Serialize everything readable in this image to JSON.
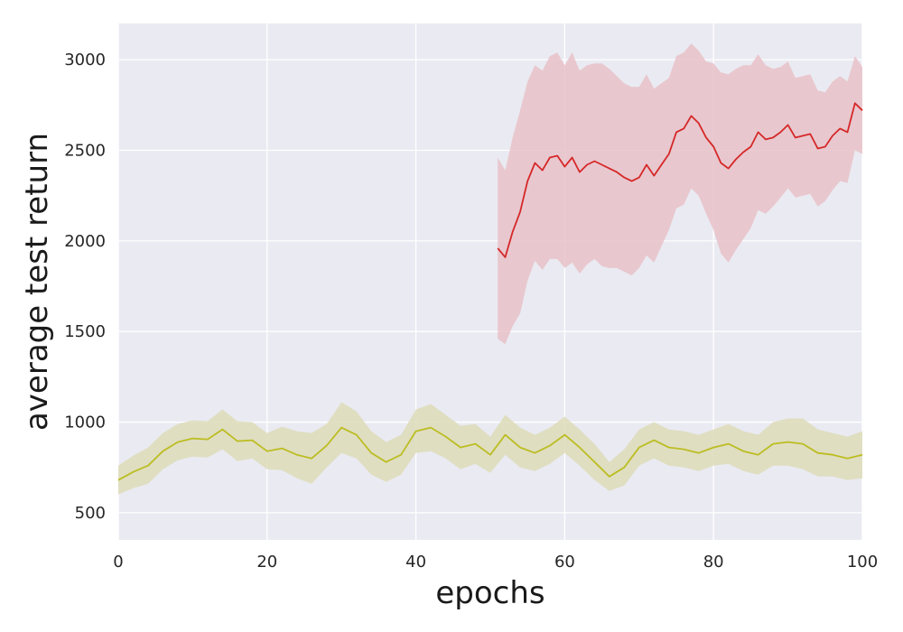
{
  "chart_data": {
    "type": "line",
    "title": "",
    "xlabel": "epochs",
    "ylabel": "average test return",
    "xlim": [
      0,
      100
    ],
    "ylim": [
      350,
      3200
    ],
    "x_ticks": [
      0,
      20,
      40,
      60,
      80,
      100
    ],
    "y_ticks": [
      500,
      1000,
      1500,
      2000,
      2500,
      3000
    ],
    "grid": true,
    "legend": "none",
    "background": "#eaeaf2",
    "series": [
      {
        "color": "#bcbd22",
        "fill_color": "#dddcb8",
        "points": [
          [
            0,
            680
          ],
          [
            2,
            725
          ],
          [
            4,
            760
          ],
          [
            6,
            840
          ],
          [
            8,
            890
          ],
          [
            10,
            910
          ],
          [
            12,
            905
          ],
          [
            14,
            960
          ],
          [
            16,
            895
          ],
          [
            18,
            900
          ],
          [
            20,
            840
          ],
          [
            22,
            855
          ],
          [
            24,
            820
          ],
          [
            26,
            800
          ],
          [
            28,
            870
          ],
          [
            30,
            970
          ],
          [
            32,
            930
          ],
          [
            34,
            830
          ],
          [
            36,
            780
          ],
          [
            38,
            820
          ],
          [
            40,
            950
          ],
          [
            42,
            970
          ],
          [
            44,
            920
          ],
          [
            46,
            860
          ],
          [
            48,
            880
          ],
          [
            50,
            820
          ],
          [
            52,
            930
          ],
          [
            54,
            860
          ],
          [
            56,
            830
          ],
          [
            58,
            870
          ],
          [
            60,
            930
          ],
          [
            62,
            860
          ],
          [
            64,
            780
          ],
          [
            66,
            700
          ],
          [
            68,
            750
          ],
          [
            70,
            860
          ],
          [
            72,
            900
          ],
          [
            74,
            860
          ],
          [
            76,
            850
          ],
          [
            78,
            830
          ],
          [
            80,
            860
          ],
          [
            82,
            880
          ],
          [
            84,
            840
          ],
          [
            86,
            820
          ],
          [
            88,
            880
          ],
          [
            90,
            890
          ],
          [
            92,
            880
          ],
          [
            94,
            830
          ],
          [
            96,
            820
          ],
          [
            98,
            800
          ],
          [
            100,
            820
          ]
        ],
        "band_halfwidth": [
          80,
          90,
          100,
          100,
          100,
          100,
          100,
          110,
          110,
          100,
          100,
          120,
          130,
          140,
          120,
          140,
          130,
          120,
          110,
          110,
          120,
          130,
          120,
          120,
          110,
          100,
          110,
          110,
          100,
          100,
          100,
          100,
          100,
          80,
          100,
          100,
          100,
          100,
          100,
          100,
          100,
          110,
          110,
          110,
          120,
          130,
          140,
          130,
          120,
          120,
          130
        ]
      },
      {
        "color": "#d62728",
        "fill_color": "#e8c2c8",
        "points": [
          [
            51,
            1960
          ],
          [
            52,
            1910
          ],
          [
            53,
            2050
          ],
          [
            54,
            2160
          ],
          [
            55,
            2330
          ],
          [
            56,
            2430
          ],
          [
            57,
            2390
          ],
          [
            58,
            2460
          ],
          [
            59,
            2470
          ],
          [
            60,
            2410
          ],
          [
            61,
            2460
          ],
          [
            62,
            2380
          ],
          [
            63,
            2420
          ],
          [
            64,
            2440
          ],
          [
            65,
            2420
          ],
          [
            66,
            2400
          ],
          [
            67,
            2380
          ],
          [
            68,
            2350
          ],
          [
            69,
            2330
          ],
          [
            70,
            2350
          ],
          [
            71,
            2420
          ],
          [
            72,
            2360
          ],
          [
            73,
            2420
          ],
          [
            74,
            2480
          ],
          [
            75,
            2600
          ],
          [
            76,
            2620
          ],
          [
            77,
            2690
          ],
          [
            78,
            2650
          ],
          [
            79,
            2570
          ],
          [
            80,
            2520
          ],
          [
            81,
            2430
          ],
          [
            82,
            2400
          ],
          [
            83,
            2450
          ],
          [
            84,
            2490
          ],
          [
            85,
            2520
          ],
          [
            86,
            2600
          ],
          [
            87,
            2560
          ],
          [
            88,
            2570
          ],
          [
            89,
            2600
          ],
          [
            90,
            2640
          ],
          [
            91,
            2570
          ],
          [
            92,
            2580
          ],
          [
            93,
            2590
          ],
          [
            94,
            2510
          ],
          [
            95,
            2520
          ],
          [
            96,
            2580
          ],
          [
            97,
            2620
          ],
          [
            98,
            2600
          ],
          [
            99,
            2760
          ],
          [
            100,
            2720
          ]
        ],
        "band_halfwidth": [
          500,
          480,
          520,
          560,
          550,
          540,
          550,
          560,
          570,
          560,
          580,
          560,
          550,
          540,
          560,
          550,
          530,
          520,
          520,
          500,
          500,
          480,
          450,
          420,
          420,
          420,
          400,
          400,
          420,
          460,
          500,
          520,
          500,
          480,
          450,
          430,
          410,
          380,
          360,
          350,
          330,
          330,
          330,
          320,
          300,
          300,
          290,
          280,
          260,
          240
        ]
      }
    ]
  }
}
